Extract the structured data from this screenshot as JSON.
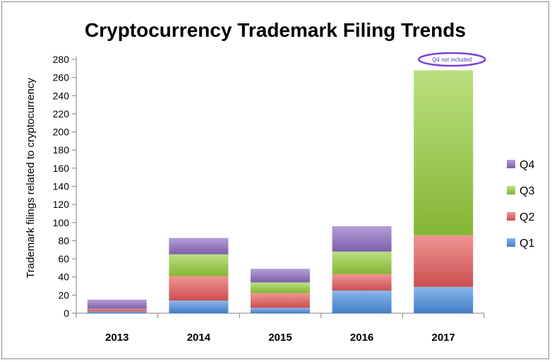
{
  "chart_data": {
    "type": "bar",
    "stacked": true,
    "title": "Cryptocurrency Trademark Filing Trends",
    "xlabel": "",
    "ylabel": "Trademark filings related to cryptocurrency",
    "ylim": [
      0,
      280
    ],
    "ytick_step": 20,
    "grid": false,
    "legend_position": "right",
    "categories": [
      "2013",
      "2014",
      "2015",
      "2016",
      "2017"
    ],
    "series": [
      {
        "name": "Q1",
        "color": "#4a8fe0",
        "values": [
          2,
          14,
          6,
          25,
          29
        ]
      },
      {
        "name": "Q2",
        "color": "#e85a5a",
        "values": [
          3,
          27,
          16,
          18,
          57
        ]
      },
      {
        "name": "Q3",
        "color": "#96cf3c",
        "values": [
          0,
          24,
          12,
          25,
          182
        ]
      },
      {
        "name": "Q4",
        "color": "#8d6bc1",
        "values": [
          10,
          18,
          15,
          28,
          0
        ]
      }
    ],
    "annotation": {
      "text": "Q4 not included",
      "category": "2017"
    }
  }
}
